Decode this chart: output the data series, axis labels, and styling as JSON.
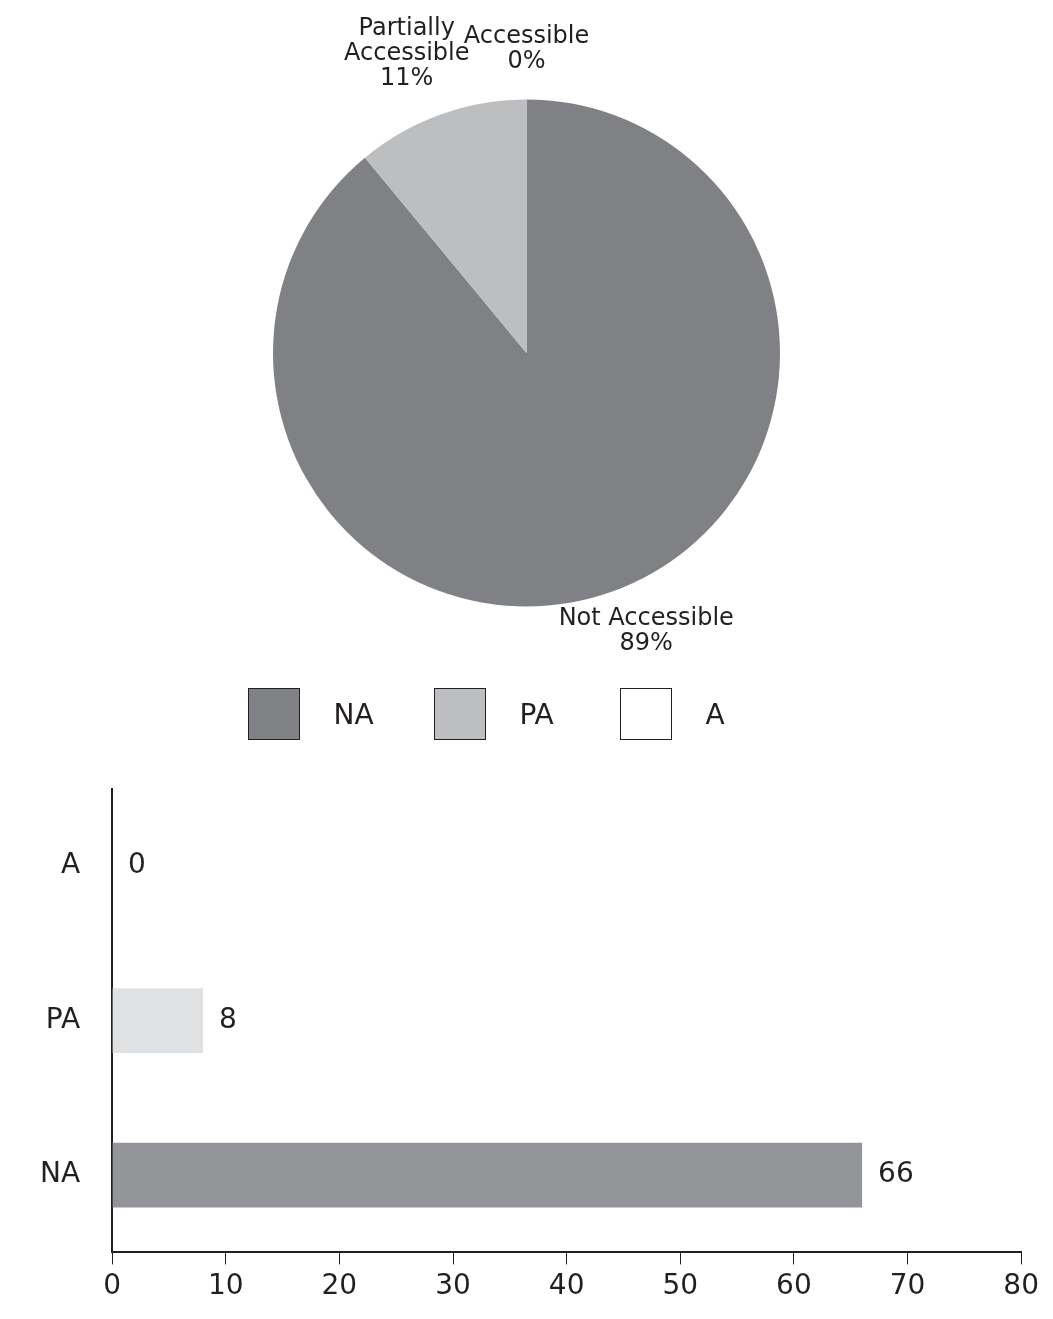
{
  "chart_data": [
    {
      "type": "pie",
      "categories": [
        "NA",
        "PA",
        "A"
      ],
      "values": [
        89,
        11,
        0
      ],
      "colors": [
        "#808184",
        "#bcbec0",
        "#ffffff"
      ],
      "value_labels": [
        "Not Accessible\n89%",
        "Partially\nAccessible\n11%",
        "Accessible\n0%"
      ],
      "legend": "bottom"
    },
    {
      "type": "bar",
      "orientation": "horizontal",
      "categories": [
        "A",
        "PA",
        "NA"
      ],
      "values": [
        0,
        8,
        66
      ],
      "colors": [
        "#ffffff",
        "#e0e1e2",
        "#939598"
      ],
      "xlim": [
        0,
        80
      ],
      "xticks": [
        0,
        10,
        20,
        30,
        40,
        50,
        60,
        70,
        80
      ],
      "data_labels": true,
      "grid": false
    }
  ]
}
